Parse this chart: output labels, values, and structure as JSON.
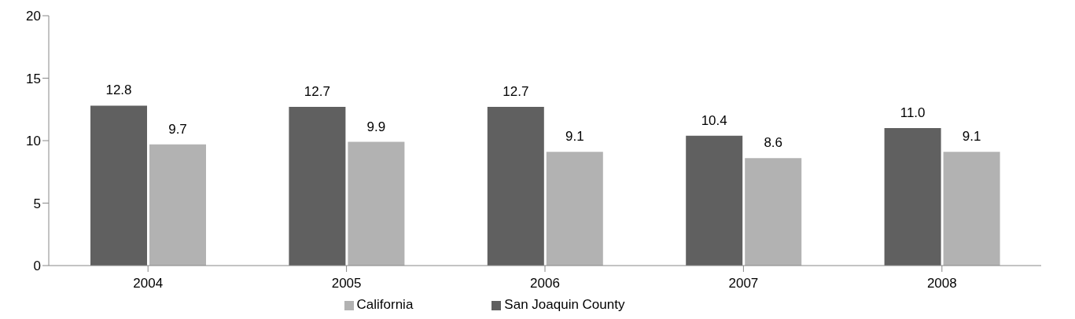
{
  "chart_data": {
    "type": "bar",
    "categories": [
      "2004",
      "2005",
      "2006",
      "2007",
      "2008"
    ],
    "series": [
      {
        "name": "San Joaquin County",
        "color": "#606060",
        "values": [
          12.8,
          12.7,
          12.7,
          10.4,
          11.0
        ],
        "value_labels": [
          "12.8",
          "12.7",
          "12.7",
          "10.4",
          "11.0"
        ]
      },
      {
        "name": "California",
        "color": "#b2b2b2",
        "values": [
          9.7,
          9.9,
          9.1,
          8.6,
          9.1
        ],
        "value_labels": [
          "9.7",
          "9.9",
          "9.1",
          "8.6",
          "9.1"
        ]
      }
    ],
    "ylim": [
      0,
      20
    ],
    "yticks": [
      0,
      5,
      10,
      15,
      20
    ],
    "grid": false,
    "legend": "bottom"
  }
}
